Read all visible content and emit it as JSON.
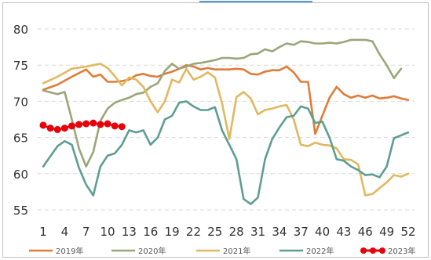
{
  "chart_data": {
    "type": "line",
    "title": "",
    "xlabel": "",
    "ylabel": "",
    "ylim": [
      55,
      80
    ],
    "yticks": [
      55,
      60,
      65,
      70,
      75,
      80
    ],
    "xlim": [
      1,
      52
    ],
    "xticks": [
      1,
      4,
      7,
      10,
      13,
      16,
      19,
      22,
      25,
      28,
      31,
      34,
      37,
      40,
      43,
      46,
      49,
      52
    ],
    "grid": "horizontal dashed",
    "legend_position": "bottom",
    "series": [
      {
        "name": "2019年",
        "color": "#e07b39",
        "x": [
          1,
          3,
          5,
          7,
          8,
          9,
          10,
          11,
          12,
          13,
          14,
          15,
          16,
          17,
          18,
          19,
          20,
          21,
          22,
          23,
          24,
          25,
          26,
          27,
          28,
          29,
          30,
          31,
          32,
          33,
          34,
          35,
          36,
          37,
          38,
          39,
          40,
          41,
          42,
          43,
          44,
          45,
          46,
          47,
          48,
          49,
          50,
          51,
          52
        ],
        "y": [
          71.6,
          72.3,
          73.4,
          74.4,
          73.4,
          73.7,
          72.7,
          72.7,
          72.8,
          73.0,
          73.6,
          73.8,
          73.5,
          73.4,
          73.8,
          74.1,
          74.5,
          75.0,
          74.8,
          74.4,
          74.6,
          74.4,
          74.4,
          74.4,
          74.5,
          74.4,
          73.8,
          73.7,
          74.1,
          74.3,
          74.3,
          74.8,
          74.0,
          72.7,
          72.7,
          65.5,
          68.0,
          70.5,
          72.0,
          71.0,
          70.5,
          70.8,
          70.5,
          70.8,
          70.4,
          70.5,
          70.7,
          70.4,
          70.2
        ]
      },
      {
        "name": "2020年",
        "color": "#9aa67a",
        "x": [
          1,
          3,
          4,
          5,
          6,
          7,
          8,
          9,
          10,
          11,
          12,
          13,
          14,
          15,
          16,
          17,
          18,
          19,
          20,
          21,
          22,
          23,
          24,
          25,
          26,
          27,
          28,
          29,
          30,
          31,
          32,
          33,
          34,
          35,
          36,
          37,
          38,
          39,
          40,
          41,
          42,
          43,
          44,
          45,
          46,
          47,
          48,
          49,
          50,
          51
        ],
        "y": [
          71.5,
          71.0,
          71.3,
          67.5,
          63.5,
          61.0,
          63.0,
          67.3,
          69.0,
          69.8,
          70.2,
          70.5,
          71.0,
          71.2,
          72.0,
          72.5,
          74.2,
          75.2,
          74.5,
          74.8,
          75.2,
          75.3,
          75.5,
          75.7,
          76.0,
          76.0,
          75.9,
          76.0,
          76.5,
          76.6,
          77.2,
          76.9,
          77.5,
          78.0,
          77.8,
          78.3,
          78.2,
          78.0,
          78.0,
          78.1,
          78.0,
          78.2,
          78.5,
          78.5,
          78.5,
          78.3,
          76.5,
          75.0,
          73.2,
          74.5
        ]
      },
      {
        "name": "2021年",
        "color": "#e0b860",
        "x": [
          1,
          3,
          5,
          7,
          8,
          9,
          10,
          11,
          12,
          13,
          14,
          15,
          16,
          17,
          18,
          19,
          20,
          21,
          22,
          23,
          24,
          25,
          26,
          27,
          28,
          29,
          30,
          31,
          32,
          33,
          34,
          35,
          36,
          37,
          38,
          39,
          40,
          41,
          42,
          43,
          44,
          45,
          46,
          47,
          48,
          49,
          50,
          51,
          52
        ],
        "y": [
          72.5,
          73.4,
          74.5,
          74.8,
          75.0,
          75.2,
          74.6,
          73.5,
          72.2,
          73.3,
          73.0,
          72.0,
          70.0,
          68.5,
          70.0,
          73.0,
          72.6,
          74.5,
          73.0,
          73.4,
          74.0,
          73.3,
          69.7,
          64.8,
          70.6,
          71.3,
          70.4,
          68.2,
          68.8,
          69.0,
          69.3,
          69.5,
          67.5,
          64.0,
          63.8,
          64.3,
          64.0,
          63.9,
          63.5,
          62.0,
          61.9,
          61.3,
          57.0,
          57.2,
          58.0,
          58.8,
          59.8,
          59.6,
          60.0
        ]
      },
      {
        "name": "2022年",
        "color": "#5e9e90",
        "x": [
          1,
          3,
          4,
          5,
          6,
          7,
          8,
          9,
          10,
          11,
          12,
          13,
          14,
          15,
          16,
          17,
          18,
          19,
          20,
          21,
          22,
          23,
          24,
          25,
          26,
          27,
          28,
          29,
          30,
          31,
          32,
          33,
          34,
          35,
          36,
          37,
          38,
          39,
          40,
          41,
          42,
          43,
          44,
          45,
          46,
          47,
          48,
          49,
          50,
          51,
          52
        ],
        "y": [
          61.0,
          63.8,
          64.5,
          64.0,
          60.8,
          58.5,
          57.0,
          61.0,
          62.5,
          62.8,
          64.0,
          66.0,
          65.7,
          66.0,
          64.0,
          65.0,
          67.5,
          68.0,
          69.8,
          70.0,
          69.3,
          68.8,
          68.8,
          69.2,
          66.0,
          64.0,
          62.0,
          56.5,
          55.8,
          56.7,
          62.0,
          64.8,
          66.4,
          67.8,
          68.0,
          69.3,
          69.0,
          67.0,
          67.2,
          65.0,
          62.0,
          61.8,
          61.0,
          60.5,
          59.8,
          59.9,
          59.5,
          61.0,
          64.9,
          65.3,
          65.7
        ]
      },
      {
        "name": "2023年",
        "color": "#e8000b",
        "x": [
          1,
          2,
          3,
          4,
          5,
          6,
          7,
          8,
          9,
          10,
          11,
          12
        ],
        "y": [
          66.7,
          66.3,
          66.1,
          66.3,
          66.6,
          66.8,
          66.9,
          67.0,
          66.8,
          66.9,
          66.6,
          66.5
        ]
      }
    ]
  }
}
